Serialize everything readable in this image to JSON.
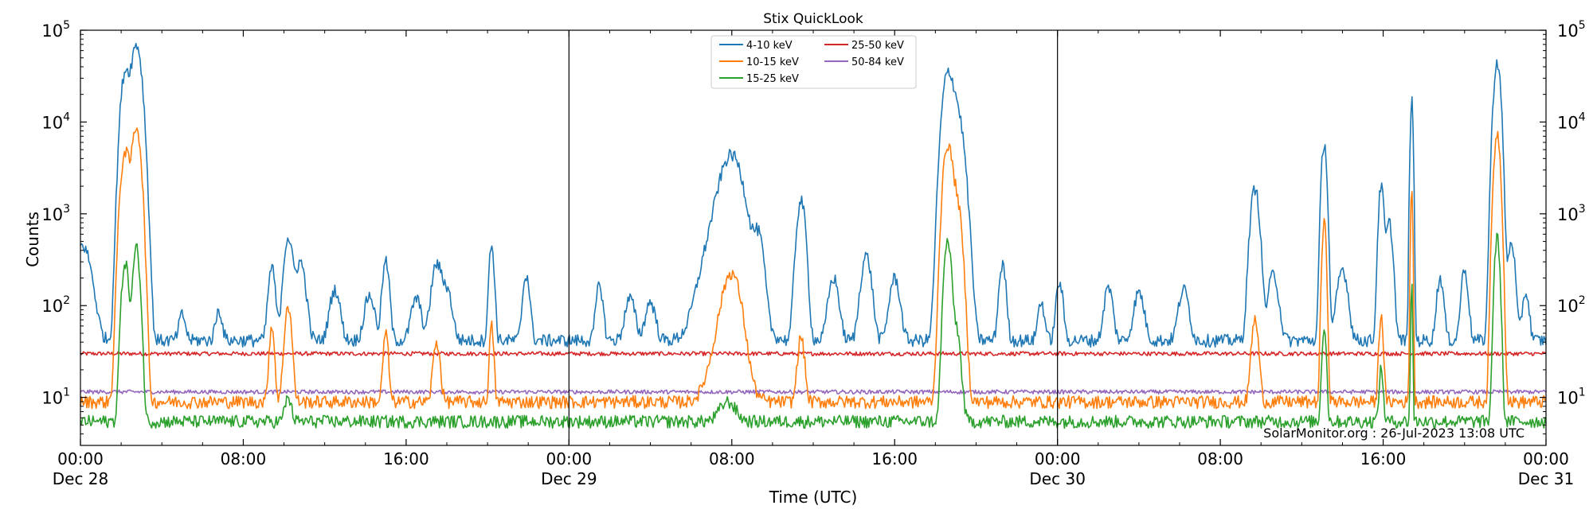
{
  "chart_data": {
    "type": "line",
    "title": "Stix QuickLook",
    "xlabel": "Time (UTC)",
    "ylabel": "Counts",
    "yscale": "log",
    "ylim": [
      3,
      100000
    ],
    "xlim_hours": [
      0,
      72
    ],
    "x_ticks": [
      {
        "h": 0,
        "time": "00:00",
        "date": "Dec 28"
      },
      {
        "h": 8,
        "time": "08:00",
        "date": ""
      },
      {
        "h": 16,
        "time": "16:00",
        "date": ""
      },
      {
        "h": 24,
        "time": "00:00",
        "date": "Dec 29"
      },
      {
        "h": 32,
        "time": "08:00",
        "date": ""
      },
      {
        "h": 40,
        "time": "16:00",
        "date": ""
      },
      {
        "h": 48,
        "time": "00:00",
        "date": "Dec 30"
      },
      {
        "h": 56,
        "time": "08:00",
        "date": ""
      },
      {
        "h": 64,
        "time": "16:00",
        "date": ""
      },
      {
        "h": 72,
        "time": "00:00",
        "date": "Dec 31"
      }
    ],
    "y_ticks": [
      {
        "v": 10,
        "label": "10",
        "exp": "1"
      },
      {
        "v": 100,
        "label": "10",
        "exp": "2"
      },
      {
        "v": 1000,
        "label": "10",
        "exp": "3"
      },
      {
        "v": 10000,
        "label": "10",
        "exp": "4"
      },
      {
        "v": 100000,
        "label": "10",
        "exp": "5"
      }
    ],
    "day_dividers_hours": [
      24,
      48
    ],
    "legend_position": "top-center",
    "annotation": "SolarMonitor.org : 26-Jul-2023 13:08 UTC",
    "series": [
      {
        "name": "4-10 keV",
        "color": "#1f77b4",
        "baseline": 42,
        "peaks": [
          [
            0.1,
            450,
            0.5
          ],
          [
            2.2,
            35000,
            0.25
          ],
          [
            2.75,
            70000,
            0.3
          ],
          [
            5.0,
            80,
            0.2
          ],
          [
            6.8,
            90,
            0.2
          ],
          [
            9.4,
            260,
            0.2
          ],
          [
            10.2,
            550,
            0.25
          ],
          [
            10.8,
            300,
            0.3
          ],
          [
            12.5,
            150,
            0.3
          ],
          [
            14.2,
            130,
            0.3
          ],
          [
            15.0,
            300,
            0.2
          ],
          [
            16.5,
            120,
            0.3
          ],
          [
            17.5,
            280,
            0.3
          ],
          [
            18.0,
            150,
            0.3
          ],
          [
            20.2,
            450,
            0.15
          ],
          [
            21.9,
            220,
            0.2
          ],
          [
            25.5,
            170,
            0.2
          ],
          [
            27.0,
            120,
            0.3
          ],
          [
            28.0,
            110,
            0.3
          ],
          [
            31.8,
            1300,
            1.0
          ],
          [
            32.0,
            3200,
            0.6
          ],
          [
            33.3,
            500,
            0.3
          ],
          [
            35.4,
            1400,
            0.25
          ],
          [
            37.0,
            200,
            0.3
          ],
          [
            38.6,
            350,
            0.3
          ],
          [
            40.0,
            200,
            0.3
          ],
          [
            42.6,
            30000,
            0.3
          ],
          [
            43.0,
            15000,
            0.4
          ],
          [
            45.3,
            280,
            0.2
          ],
          [
            47.2,
            110,
            0.2
          ],
          [
            48.1,
            180,
            0.2
          ],
          [
            50.5,
            160,
            0.25
          ],
          [
            52.0,
            140,
            0.3
          ],
          [
            54.2,
            150,
            0.3
          ],
          [
            57.7,
            1900,
            0.25
          ],
          [
            58.6,
            220,
            0.3
          ],
          [
            61.1,
            6000,
            0.15
          ],
          [
            62.0,
            250,
            0.3
          ],
          [
            63.9,
            2000,
            0.15
          ],
          [
            64.3,
            800,
            0.2
          ],
          [
            65.4,
            17000,
            0.08
          ],
          [
            66.8,
            200,
            0.2
          ],
          [
            68.0,
            250,
            0.2
          ],
          [
            69.6,
            45000,
            0.2
          ],
          [
            70.3,
            500,
            0.2
          ],
          [
            71.0,
            140,
            0.2
          ]
        ]
      },
      {
        "name": "10-15 keV",
        "color": "#ff7f0e",
        "baseline": 9,
        "peaks": [
          [
            2.2,
            4800,
            0.25
          ],
          [
            2.75,
            9000,
            0.25
          ],
          [
            9.4,
            60,
            0.15
          ],
          [
            10.2,
            100,
            0.2
          ],
          [
            15.0,
            50,
            0.15
          ],
          [
            17.5,
            40,
            0.2
          ],
          [
            20.2,
            60,
            0.12
          ],
          [
            31.8,
            60,
            0.8
          ],
          [
            32.0,
            180,
            0.5
          ],
          [
            35.4,
            45,
            0.2
          ],
          [
            42.6,
            5500,
            0.25
          ],
          [
            43.0,
            1600,
            0.3
          ],
          [
            57.7,
            70,
            0.2
          ],
          [
            61.1,
            800,
            0.12
          ],
          [
            63.9,
            80,
            0.12
          ],
          [
            65.4,
            2000,
            0.06
          ],
          [
            69.6,
            7500,
            0.18
          ]
        ]
      },
      {
        "name": "15-25 keV",
        "color": "#2ca02c",
        "baseline": 5.5,
        "peaks": [
          [
            2.2,
            300,
            0.2
          ],
          [
            2.75,
            420,
            0.2
          ],
          [
            10.2,
            10,
            0.2
          ],
          [
            31.8,
            9,
            0.5
          ],
          [
            42.6,
            500,
            0.2
          ],
          [
            43.0,
            60,
            0.25
          ],
          [
            61.1,
            60,
            0.12
          ],
          [
            63.9,
            20,
            0.12
          ],
          [
            65.4,
            180,
            0.05
          ],
          [
            69.6,
            550,
            0.15
          ]
        ]
      },
      {
        "name": "25-50 keV",
        "color": "#d62728",
        "baseline": 30,
        "peaks": []
      },
      {
        "name": "50-84 keV",
        "color": "#9467bd",
        "baseline": 11.5,
        "peaks": []
      }
    ]
  }
}
